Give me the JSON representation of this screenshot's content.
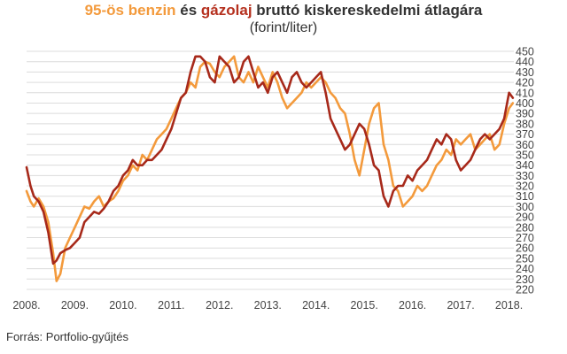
{
  "title": {
    "benzin": "95-ös benzin",
    "es": " és ",
    "gazolaj": "gázolaj",
    "rest": " bruttó kiskereskedelmi átlagára"
  },
  "subtitle": "(forint/liter)",
  "source": "Forrás: Portfolio-gyűjtés",
  "colors": {
    "benzin": "#f39a3c",
    "gazolaj": "#a7291a",
    "grid": "#dcdcdc",
    "text": "#444444"
  },
  "chart_data": {
    "type": "line",
    "title": "95-ös benzin és gázolaj bruttó kiskereskedelmi átlagára",
    "subtitle": "(forint/liter)",
    "xlabel": "",
    "ylabel": "",
    "xlim": [
      2008.0,
      2018.1
    ],
    "ylim": [
      220,
      450
    ],
    "y_ticks": [
      220,
      230,
      240,
      250,
      260,
      270,
      280,
      290,
      300,
      310,
      320,
      330,
      340,
      350,
      360,
      370,
      380,
      390,
      400,
      410,
      420,
      430,
      440,
      450
    ],
    "x_ticks": [
      {
        "value": 2008,
        "label": "2008."
      },
      {
        "value": 2009,
        "label": "2009."
      },
      {
        "value": 2010,
        "label": "2010."
      },
      {
        "value": 2011,
        "label": "2011."
      },
      {
        "value": 2012,
        "label": "2012."
      },
      {
        "value": 2013,
        "label": "2013."
      },
      {
        "value": 2014,
        "label": "2014."
      },
      {
        "value": 2015,
        "label": "2015."
      },
      {
        "value": 2016,
        "label": "2016."
      },
      {
        "value": 2017,
        "label": "2017."
      },
      {
        "value": 2018,
        "label": "2018."
      }
    ],
    "grid": true,
    "y_axis_position": "right",
    "series": [
      {
        "name": "95-ös benzin",
        "color": "#f39a3c",
        "x": [
          2008.0,
          2008.08,
          2008.15,
          2008.25,
          2008.35,
          2008.45,
          2008.55,
          2008.62,
          2008.7,
          2008.8,
          2008.9,
          2009.0,
          2009.1,
          2009.2,
          2009.3,
          2009.4,
          2009.5,
          2009.6,
          2009.7,
          2009.8,
          2009.9,
          2010.0,
          2010.1,
          2010.2,
          2010.3,
          2010.4,
          2010.5,
          2010.6,
          2010.7,
          2010.8,
          2010.9,
          2011.0,
          2011.1,
          2011.2,
          2011.3,
          2011.4,
          2011.5,
          2011.6,
          2011.7,
          2011.8,
          2011.9,
          2012.0,
          2012.1,
          2012.2,
          2012.3,
          2012.4,
          2012.5,
          2012.6,
          2012.7,
          2012.8,
          2012.9,
          2013.0,
          2013.1,
          2013.2,
          2013.3,
          2013.4,
          2013.5,
          2013.6,
          2013.7,
          2013.8,
          2013.9,
          2014.0,
          2014.1,
          2014.2,
          2014.3,
          2014.4,
          2014.5,
          2014.6,
          2014.7,
          2014.8,
          2014.9,
          2015.0,
          2015.1,
          2015.2,
          2015.3,
          2015.4,
          2015.5,
          2015.6,
          2015.7,
          2015.8,
          2015.9,
          2016.0,
          2016.1,
          2016.2,
          2016.3,
          2016.4,
          2016.5,
          2016.6,
          2016.7,
          2016.8,
          2016.9,
          2017.0,
          2017.1,
          2017.2,
          2017.3,
          2017.4,
          2017.5,
          2017.6,
          2017.7,
          2017.8,
          2017.9,
          2018.0,
          2018.08
        ],
        "values": [
          315,
          305,
          300,
          308,
          300,
          285,
          255,
          228,
          235,
          260,
          270,
          280,
          290,
          300,
          298,
          305,
          310,
          300,
          305,
          308,
          315,
          325,
          330,
          340,
          335,
          350,
          345,
          355,
          365,
          370,
          375,
          385,
          395,
          405,
          410,
          420,
          415,
          435,
          440,
          438,
          430,
          425,
          435,
          440,
          445,
          425,
          420,
          430,
          420,
          435,
          425,
          415,
          430,
          420,
          405,
          395,
          400,
          405,
          410,
          420,
          415,
          420,
          425,
          420,
          410,
          405,
          395,
          390,
          370,
          345,
          330,
          355,
          380,
          395,
          400,
          360,
          345,
          320,
          315,
          300,
          305,
          310,
          320,
          315,
          320,
          330,
          340,
          345,
          355,
          350,
          365,
          360,
          365,
          370,
          355,
          360,
          365,
          370,
          355,
          360,
          380,
          395,
          400
        ]
      },
      {
        "name": "gázolaj",
        "color": "#a7291a",
        "x": [
          2008.0,
          2008.08,
          2008.15,
          2008.25,
          2008.35,
          2008.45,
          2008.55,
          2008.62,
          2008.7,
          2008.8,
          2008.9,
          2009.0,
          2009.1,
          2009.2,
          2009.3,
          2009.4,
          2009.5,
          2009.6,
          2009.7,
          2009.8,
          2009.9,
          2010.0,
          2010.1,
          2010.2,
          2010.3,
          2010.4,
          2010.5,
          2010.6,
          2010.7,
          2010.8,
          2010.9,
          2011.0,
          2011.1,
          2011.2,
          2011.3,
          2011.4,
          2011.5,
          2011.6,
          2011.7,
          2011.8,
          2011.9,
          2012.0,
          2012.1,
          2012.2,
          2012.3,
          2012.4,
          2012.5,
          2012.6,
          2012.7,
          2012.8,
          2012.9,
          2013.0,
          2013.1,
          2013.2,
          2013.3,
          2013.4,
          2013.5,
          2013.6,
          2013.7,
          2013.8,
          2013.9,
          2014.0,
          2014.1,
          2014.2,
          2014.3,
          2014.4,
          2014.5,
          2014.6,
          2014.7,
          2014.8,
          2014.9,
          2015.0,
          2015.1,
          2015.2,
          2015.3,
          2015.4,
          2015.5,
          2015.6,
          2015.7,
          2015.8,
          2015.9,
          2016.0,
          2016.1,
          2016.2,
          2016.3,
          2016.4,
          2016.5,
          2016.6,
          2016.7,
          2016.8,
          2016.9,
          2017.0,
          2017.1,
          2017.2,
          2017.3,
          2017.4,
          2017.5,
          2017.6,
          2017.7,
          2017.8,
          2017.9,
          2018.0,
          2018.08
        ],
        "values": [
          338,
          320,
          310,
          305,
          295,
          275,
          245,
          248,
          255,
          258,
          260,
          265,
          270,
          285,
          290,
          295,
          293,
          298,
          305,
          315,
          320,
          330,
          335,
          345,
          340,
          340,
          345,
          345,
          350,
          355,
          365,
          375,
          390,
          405,
          410,
          430,
          445,
          445,
          440,
          425,
          420,
          445,
          440,
          435,
          420,
          425,
          440,
          445,
          430,
          415,
          420,
          410,
          425,
          430,
          420,
          410,
          425,
          430,
          420,
          415,
          420,
          425,
          430,
          410,
          385,
          375,
          365,
          355,
          360,
          370,
          380,
          375,
          360,
          340,
          335,
          310,
          300,
          315,
          320,
          320,
          330,
          325,
          335,
          340,
          345,
          355,
          365,
          360,
          370,
          365,
          345,
          335,
          340,
          345,
          355,
          365,
          370,
          365,
          370,
          375,
          385,
          410,
          405
        ]
      }
    ]
  }
}
